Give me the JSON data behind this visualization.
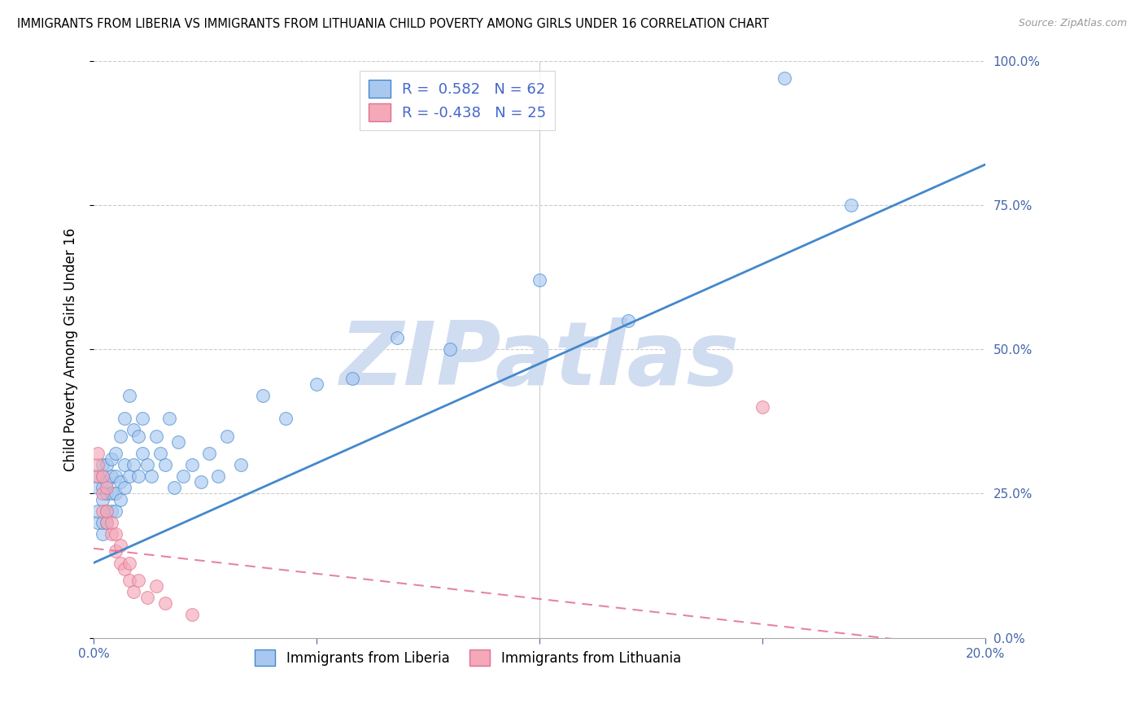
{
  "title": "IMMIGRANTS FROM LIBERIA VS IMMIGRANTS FROM LITHUANIA CHILD POVERTY AMONG GIRLS UNDER 16 CORRELATION CHART",
  "source": "Source: ZipAtlas.com",
  "ylabel": "Child Poverty Among Girls Under 16",
  "xlim": [
    0.0,
    0.2
  ],
  "ylim": [
    0.0,
    1.0
  ],
  "xticks": [
    0.0,
    0.05,
    0.1,
    0.15,
    0.2
  ],
  "xtick_labels": [
    "0.0%",
    "",
    "",
    "",
    "20.0%"
  ],
  "ytick_labels_right": [
    "100.0%",
    "75.0%",
    "50.0%",
    "25.0%",
    "0.0%"
  ],
  "ytick_positions": [
    1.0,
    0.75,
    0.5,
    0.25,
    0.0
  ],
  "liberia_R": 0.582,
  "liberia_N": 62,
  "lithuania_R": -0.438,
  "lithuania_N": 25,
  "liberia_color": "#A8C8F0",
  "lithuania_color": "#F4A8B8",
  "liberia_line_color": "#4488CC",
  "lithuania_line_color": "#E07090",
  "watermark": "ZIPatlas",
  "watermark_color": "#D0DCF0",
  "liberia_trend_x": [
    0.0,
    0.2
  ],
  "liberia_trend_y": [
    0.13,
    0.82
  ],
  "lithuania_trend_x": [
    0.0,
    0.2
  ],
  "lithuania_trend_y": [
    0.155,
    -0.02
  ],
  "liberia_x": [
    0.001,
    0.001,
    0.001,
    0.001,
    0.002,
    0.002,
    0.002,
    0.002,
    0.002,
    0.002,
    0.003,
    0.003,
    0.003,
    0.003,
    0.003,
    0.004,
    0.004,
    0.004,
    0.004,
    0.005,
    0.005,
    0.005,
    0.005,
    0.006,
    0.006,
    0.006,
    0.007,
    0.007,
    0.007,
    0.008,
    0.008,
    0.009,
    0.009,
    0.01,
    0.01,
    0.011,
    0.011,
    0.012,
    0.013,
    0.014,
    0.015,
    0.016,
    0.017,
    0.018,
    0.019,
    0.02,
    0.022,
    0.024,
    0.026,
    0.028,
    0.03,
    0.033,
    0.038,
    0.043,
    0.05,
    0.058,
    0.068,
    0.08,
    0.1,
    0.12,
    0.155,
    0.17
  ],
  "liberia_y": [
    0.2,
    0.22,
    0.26,
    0.28,
    0.18,
    0.2,
    0.24,
    0.26,
    0.28,
    0.3,
    0.2,
    0.22,
    0.25,
    0.27,
    0.3,
    0.22,
    0.25,
    0.28,
    0.31,
    0.22,
    0.25,
    0.28,
    0.32,
    0.24,
    0.27,
    0.35,
    0.26,
    0.3,
    0.38,
    0.28,
    0.42,
    0.3,
    0.36,
    0.28,
    0.35,
    0.32,
    0.38,
    0.3,
    0.28,
    0.35,
    0.32,
    0.3,
    0.38,
    0.26,
    0.34,
    0.28,
    0.3,
    0.27,
    0.32,
    0.28,
    0.35,
    0.3,
    0.42,
    0.38,
    0.44,
    0.45,
    0.52,
    0.5,
    0.62,
    0.55,
    0.97,
    0.75
  ],
  "lithuania_x": [
    0.001,
    0.001,
    0.001,
    0.002,
    0.002,
    0.002,
    0.003,
    0.003,
    0.003,
    0.004,
    0.004,
    0.005,
    0.005,
    0.006,
    0.006,
    0.007,
    0.008,
    0.008,
    0.009,
    0.01,
    0.012,
    0.014,
    0.016,
    0.022,
    0.15
  ],
  "lithuania_y": [
    0.28,
    0.3,
    0.32,
    0.22,
    0.25,
    0.28,
    0.2,
    0.22,
    0.26,
    0.18,
    0.2,
    0.15,
    0.18,
    0.13,
    0.16,
    0.12,
    0.1,
    0.13,
    0.08,
    0.1,
    0.07,
    0.09,
    0.06,
    0.04,
    0.4
  ]
}
